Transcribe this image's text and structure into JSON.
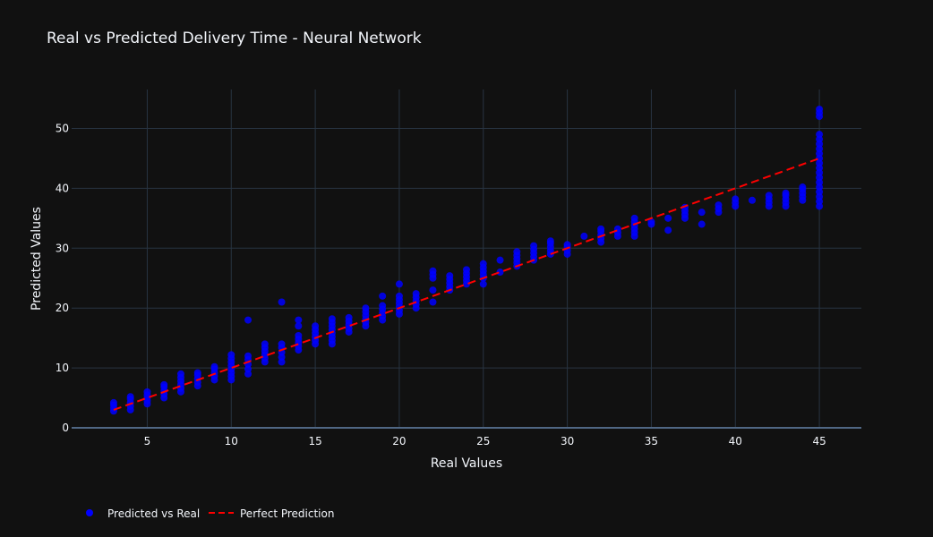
{
  "chart_data": {
    "type": "scatter",
    "title": "Real vs Predicted Delivery Time - Neural Network",
    "xlabel": "Real Values",
    "ylabel": "Predicted Values",
    "xlim": [
      0.5,
      47.5
    ],
    "ylim": [
      0,
      56.5
    ],
    "x_ticks": [
      5,
      10,
      15,
      20,
      25,
      30,
      35,
      40,
      45
    ],
    "y_ticks": [
      0,
      10,
      20,
      30,
      40,
      50
    ],
    "grid": true,
    "legend_placement": "bottom-left",
    "series": [
      {
        "name": "Predicted vs Real",
        "color": "#0000ff",
        "mode": "markers",
        "points": [
          [
            3,
            2.8
          ],
          [
            3,
            3.3
          ],
          [
            3,
            3.8
          ],
          [
            3,
            4.2
          ],
          [
            4,
            3.0
          ],
          [
            4,
            3.6
          ],
          [
            4,
            4.2
          ],
          [
            4,
            4.8
          ],
          [
            4,
            5.2
          ],
          [
            5,
            4.0
          ],
          [
            5,
            4.5
          ],
          [
            5,
            5.0
          ],
          [
            5,
            5.5
          ],
          [
            5,
            6.0
          ],
          [
            6,
            5.0
          ],
          [
            6,
            5.6
          ],
          [
            6,
            6.2
          ],
          [
            6,
            6.8
          ],
          [
            6,
            7.2
          ],
          [
            7,
            6.0
          ],
          [
            7,
            6.6
          ],
          [
            7,
            7.2
          ],
          [
            7,
            7.8
          ],
          [
            7,
            8.4
          ],
          [
            7,
            9.0
          ],
          [
            8,
            7.0
          ],
          [
            8,
            7.6
          ],
          [
            8,
            8.2
          ],
          [
            8,
            8.8
          ],
          [
            8,
            9.2
          ],
          [
            9,
            8.0
          ],
          [
            9,
            8.6
          ],
          [
            9,
            9.2
          ],
          [
            9,
            9.8
          ],
          [
            9,
            10.2
          ],
          [
            10,
            8.0
          ],
          [
            10,
            8.6
          ],
          [
            10,
            9.2
          ],
          [
            10,
            9.8
          ],
          [
            10,
            10.4
          ],
          [
            10,
            11.0
          ],
          [
            10,
            11.6
          ],
          [
            10,
            12.2
          ],
          [
            11,
            9.0
          ],
          [
            11,
            9.8
          ],
          [
            11,
            10.6
          ],
          [
            11,
            11.4
          ],
          [
            11,
            12.0
          ],
          [
            11,
            18.0
          ],
          [
            12,
            11.0
          ],
          [
            12,
            11.6
          ],
          [
            12,
            12.2
          ],
          [
            12,
            12.8
          ],
          [
            12,
            13.4
          ],
          [
            12,
            14.0
          ],
          [
            13,
            11.0
          ],
          [
            13,
            11.8
          ],
          [
            13,
            12.6
          ],
          [
            13,
            13.4
          ],
          [
            13,
            14.0
          ],
          [
            13,
            21.0
          ],
          [
            14,
            13.0
          ],
          [
            14,
            13.6
          ],
          [
            14,
            14.2
          ],
          [
            14,
            14.8
          ],
          [
            14,
            15.4
          ],
          [
            14,
            17.0
          ],
          [
            14,
            18.0
          ],
          [
            15,
            14.0
          ],
          [
            15,
            14.6
          ],
          [
            15,
            15.2
          ],
          [
            15,
            15.8
          ],
          [
            15,
            16.4
          ],
          [
            15,
            17.0
          ],
          [
            16,
            14.0
          ],
          [
            16,
            14.6
          ],
          [
            16,
            15.2
          ],
          [
            16,
            15.8
          ],
          [
            16,
            16.4
          ],
          [
            16,
            17.0
          ],
          [
            16,
            17.6
          ],
          [
            16,
            18.2
          ],
          [
            17,
            16.0
          ],
          [
            17,
            16.6
          ],
          [
            17,
            17.2
          ],
          [
            17,
            17.8
          ],
          [
            17,
            18.4
          ],
          [
            18,
            17.0
          ],
          [
            18,
            17.6
          ],
          [
            18,
            18.2
          ],
          [
            18,
            18.8
          ],
          [
            18,
            19.4
          ],
          [
            18,
            20.0
          ],
          [
            19,
            18.0
          ],
          [
            19,
            18.6
          ],
          [
            19,
            19.2
          ],
          [
            19,
            19.8
          ],
          [
            19,
            20.4
          ],
          [
            19,
            22.0
          ],
          [
            20,
            19.0
          ],
          [
            20,
            19.6
          ],
          [
            20,
            20.2
          ],
          [
            20,
            20.8
          ],
          [
            20,
            21.4
          ],
          [
            20,
            22.0
          ],
          [
            20,
            24.0
          ],
          [
            21,
            20.0
          ],
          [
            21,
            20.6
          ],
          [
            21,
            21.2
          ],
          [
            21,
            21.8
          ],
          [
            21,
            22.4
          ],
          [
            22,
            21.0
          ],
          [
            22,
            23.0
          ],
          [
            22,
            25.0
          ],
          [
            22,
            25.6
          ],
          [
            22,
            26.2
          ],
          [
            23,
            23.0
          ],
          [
            23,
            23.6
          ],
          [
            23,
            24.2
          ],
          [
            23,
            24.8
          ],
          [
            23,
            25.4
          ],
          [
            24,
            24.0
          ],
          [
            24,
            24.6
          ],
          [
            24,
            25.2
          ],
          [
            24,
            25.8
          ],
          [
            24,
            26.4
          ],
          [
            25,
            24.0
          ],
          [
            25,
            25.0
          ],
          [
            25,
            25.6
          ],
          [
            25,
            26.2
          ],
          [
            25,
            26.8
          ],
          [
            25,
            27.4
          ],
          [
            26,
            26.0
          ],
          [
            26,
            28.0
          ],
          [
            27,
            27.0
          ],
          [
            27,
            27.6
          ],
          [
            27,
            28.2
          ],
          [
            27,
            28.8
          ],
          [
            27,
            29.4
          ],
          [
            28,
            28.0
          ],
          [
            28,
            28.6
          ],
          [
            28,
            29.2
          ],
          [
            28,
            29.8
          ],
          [
            28,
            30.4
          ],
          [
            29,
            29.0
          ],
          [
            29,
            29.6
          ],
          [
            29,
            30.2
          ],
          [
            29,
            30.8
          ],
          [
            29,
            31.2
          ],
          [
            30,
            29.0
          ],
          [
            30,
            29.6
          ],
          [
            30,
            30.2
          ],
          [
            30,
            30.6
          ],
          [
            31,
            32.0
          ],
          [
            32,
            31.0
          ],
          [
            32,
            31.6
          ],
          [
            32,
            32.2
          ],
          [
            32,
            32.8
          ],
          [
            32,
            33.2
          ],
          [
            33,
            32.0
          ],
          [
            33,
            32.6
          ],
          [
            33,
            33.2
          ],
          [
            34,
            32.0
          ],
          [
            34,
            32.6
          ],
          [
            34,
            33.2
          ],
          [
            34,
            33.8
          ],
          [
            34,
            34.4
          ],
          [
            34,
            35.0
          ],
          [
            35,
            34.0
          ],
          [
            35,
            34.4
          ],
          [
            36,
            33.0
          ],
          [
            36,
            35.0
          ],
          [
            37,
            35.0
          ],
          [
            37,
            35.6
          ],
          [
            37,
            36.2
          ],
          [
            37,
            36.8
          ],
          [
            38,
            34.0
          ],
          [
            38,
            36.0
          ],
          [
            39,
            36.0
          ],
          [
            39,
            36.6
          ],
          [
            39,
            37.2
          ],
          [
            40,
            37.0
          ],
          [
            40,
            37.6
          ],
          [
            40,
            38.2
          ],
          [
            41,
            38.0
          ],
          [
            42,
            37.0
          ],
          [
            42,
            37.6
          ],
          [
            42,
            38.2
          ],
          [
            42,
            38.8
          ],
          [
            43,
            37.0
          ],
          [
            43,
            37.6
          ],
          [
            43,
            38.2
          ],
          [
            43,
            38.8
          ],
          [
            43,
            39.2
          ],
          [
            44,
            38.0
          ],
          [
            44,
            38.6
          ],
          [
            44,
            39.2
          ],
          [
            44,
            39.8
          ],
          [
            44,
            40.2
          ],
          [
            45,
            37.0
          ],
          [
            45,
            37.8
          ],
          [
            45,
            38.6
          ],
          [
            45,
            39.4
          ],
          [
            45,
            40.2
          ],
          [
            45,
            41.0
          ],
          [
            45,
            41.8
          ],
          [
            45,
            42.6
          ],
          [
            45,
            43.4
          ],
          [
            45,
            44.2
          ],
          [
            45,
            45.0
          ],
          [
            45,
            45.8
          ],
          [
            45,
            46.6
          ],
          [
            45,
            47.4
          ],
          [
            45,
            48.2
          ],
          [
            45,
            49.0
          ],
          [
            45,
            52.0
          ],
          [
            45,
            52.6
          ],
          [
            45,
            53.2
          ]
        ]
      },
      {
        "name": "Perfect Prediction",
        "color": "#ff0000",
        "mode": "dashed-line",
        "x": [
          3,
          45
        ],
        "y": [
          3,
          45
        ]
      }
    ]
  }
}
